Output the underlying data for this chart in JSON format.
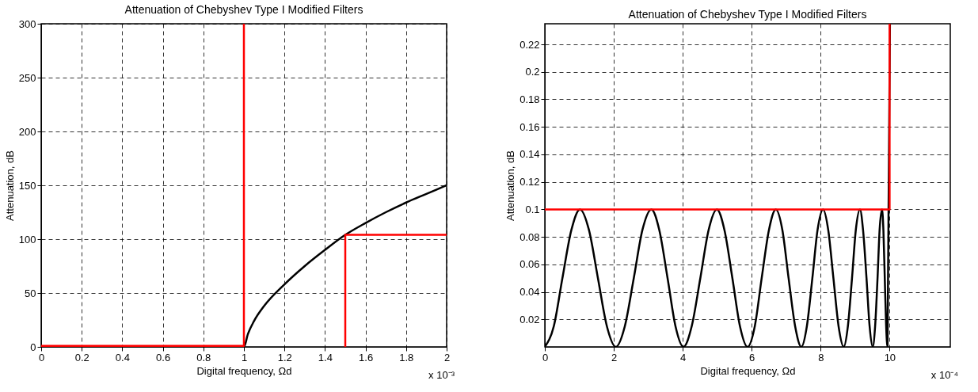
{
  "chart_data": [
    {
      "type": "line",
      "title": "Attenuation of Chebyshev Type I Modified Filters",
      "xlabel": "Digital frequency, Ωd",
      "ylabel": "Attenuation, dB",
      "xlim": [
        0,
        2
      ],
      "xticks": [
        0,
        0.2,
        0.4,
        0.6,
        0.8,
        1,
        1.2,
        1.4,
        1.6,
        1.8,
        2
      ],
      "ylim": [
        0,
        300
      ],
      "yticks": [
        0,
        50,
        100,
        150,
        200,
        250,
        300
      ],
      "grid": true,
      "series": [
        {
          "color": "#000000",
          "x": [
            0,
            0.5,
            1,
            1.02,
            1.05,
            1.1,
            1.2,
            1.3,
            1.4,
            1.5,
            1.6,
            1.7,
            1.8,
            1.9,
            2
          ],
          "values": [
            0,
            0,
            0,
            12,
            24,
            38,
            58,
            75,
            90,
            104,
            115,
            125,
            134,
            142,
            150
          ]
        },
        {
          "color": "#ff0000",
          "x": [
            0,
            1,
            1
          ],
          "values": [
            1,
            1,
            300
          ]
        },
        {
          "color": "#ff0000",
          "x": [
            1.5,
            1.5,
            2
          ],
          "values": [
            0,
            104,
            104
          ]
        }
      ],
      "annotations": [
        "x 10⁻³"
      ]
    },
    {
      "type": "line",
      "title": "Attenuation of Chebyshev Type I Modified Filters",
      "xlabel": "Digital frequency, Ωd",
      "ylabel": "Attenuation, dB",
      "xlim": [
        0,
        11.76
      ],
      "xticks": [
        0,
        2,
        4,
        6,
        8,
        10
      ],
      "ylim": [
        0,
        0.235
      ],
      "yticks": [
        0.02,
        0.04,
        0.06,
        0.08,
        0.1,
        0.12,
        0.14,
        0.16,
        0.18,
        0.2,
        0.22
      ],
      "grid": true,
      "series": [
        {
          "color": "#000000",
          "x": [
            0,
            0.26,
            0.51,
            0.77,
            1.02,
            1.28,
            1.54,
            1.8,
            2.06,
            2.32,
            2.58,
            2.83,
            3.09,
            3.32,
            3.56,
            3.79,
            4.02,
            4.26,
            4.51,
            4.75,
            4.99,
            5.21,
            5.44,
            5.66,
            5.88,
            6.09,
            6.29,
            6.5,
            6.7,
            6.89,
            7.07,
            7.26,
            7.44,
            7.6,
            7.76,
            7.91,
            8.07,
            8.22,
            8.37,
            8.52,
            8.67,
            8.79,
            8.91,
            9.02,
            9.14,
            9.23,
            9.33,
            9.42,
            9.51,
            9.58,
            9.65,
            9.71,
            9.78,
            9.82,
            9.86,
            9.9,
            9.94,
            10.01
          ],
          "values": [
            0,
            0.015,
            0.05,
            0.085,
            0.1,
            0.085,
            0.05,
            0.015,
            0,
            0.015,
            0.05,
            0.085,
            0.1,
            0.085,
            0.05,
            0.015,
            0,
            0.015,
            0.05,
            0.085,
            0.1,
            0.085,
            0.05,
            0.015,
            0,
            0.015,
            0.05,
            0.085,
            0.1,
            0.085,
            0.05,
            0.015,
            0,
            0.015,
            0.05,
            0.085,
            0.1,
            0.085,
            0.05,
            0.015,
            0,
            0.015,
            0.05,
            0.085,
            0.1,
            0.085,
            0.05,
            0.015,
            0,
            0.015,
            0.05,
            0.085,
            0.1,
            0.085,
            0.05,
            0.015,
            0,
            0.235
          ]
        },
        {
          "color": "#ff0000",
          "x": [
            0,
            10,
            10
          ],
          "values": [
            0.1,
            0.1,
            0.235
          ]
        }
      ],
      "annotations": [
        "x 10⁻⁴"
      ]
    }
  ]
}
